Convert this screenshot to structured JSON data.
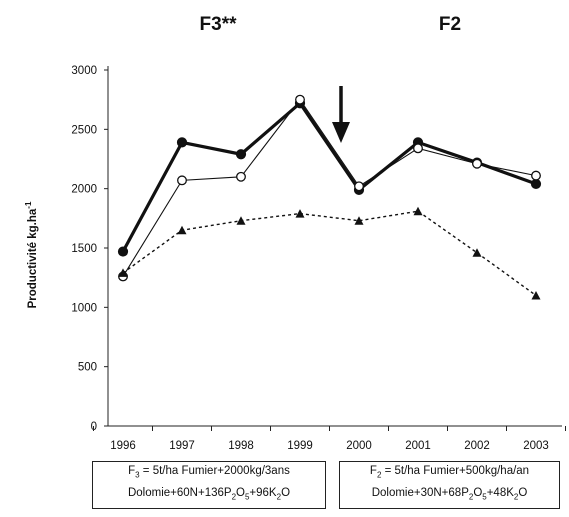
{
  "chart_data": {
    "type": "line",
    "section_labels": [
      "F3**",
      "F2"
    ],
    "ylabel": "Productivité kg.ha",
    "ylabel_exponent": "-1",
    "categories": [
      "1996",
      "1997",
      "1998",
      "1999",
      "2000",
      "2001",
      "2002",
      "2003"
    ],
    "yticks": [
      "0",
      "500",
      "1000",
      "1500",
      "2000",
      "2500",
      "3000"
    ],
    "ylim": [
      0,
      3000
    ],
    "grid": false,
    "legend": "none",
    "series": [
      {
        "style": "thick-solid-filled-circle",
        "color": "#111111",
        "values": [
          1470,
          2390,
          2290,
          2720,
          1990,
          2390,
          2220,
          2040
        ]
      },
      {
        "style": "thin-solid-open-circle",
        "color": "#111111",
        "values": [
          1260,
          2070,
          2100,
          2750,
          2020,
          2340,
          2210,
          2110
        ]
      },
      {
        "style": "dotted-filled-triangle",
        "color": "#111111",
        "values": [
          1290,
          1650,
          1730,
          1790,
          1730,
          1810,
          1460,
          1100
        ]
      }
    ],
    "annotations": {
      "arrow": "down-arrow-between-1999-2000",
      "box_left": {
        "line1_a": "F",
        "line1_sub": "3",
        "line1_b": " = 5t/ha Fumier+2000kg/3ans",
        "line2_a": "Dolomie+60N+136P",
        "line2_sub1": "2",
        "line2_b": "O",
        "line2_sub2": "5",
        "line2_c": "+96K",
        "line2_sub3": "2",
        "line2_d": "O"
      },
      "box_right": {
        "line1_a": "F",
        "line1_sub": "2",
        "line1_b": " = 5t/ha Fumier+500kg/ha/an",
        "line2_a": "Dolomie+30N+68P",
        "line2_sub1": "2",
        "line2_b": "O",
        "line2_sub2": "5",
        "line2_c": "+48K",
        "line2_sub3": "2",
        "line2_d": "O"
      }
    }
  }
}
